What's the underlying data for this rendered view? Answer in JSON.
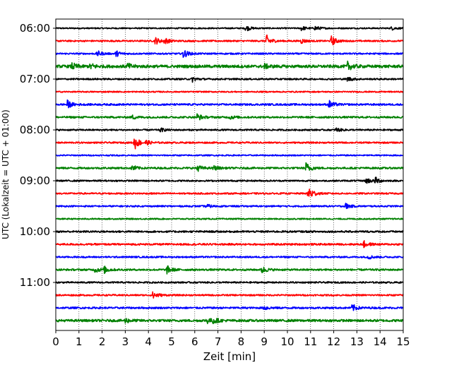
{
  "chart_data": {
    "type": "line",
    "title": "",
    "xlabel": "Zeit  [min]",
    "ylabel": "UTC (Lokalzeit = UTC + 01:00)",
    "xlim": [
      0,
      15
    ],
    "xticks": [
      0,
      1,
      2,
      3,
      4,
      5,
      6,
      7,
      8,
      9,
      10,
      11,
      12,
      13,
      14,
      15
    ],
    "xtick_labels": [
      "0",
      "1",
      "2",
      "3",
      "4",
      "5",
      "6",
      "7",
      "8",
      "9",
      "10",
      "11",
      "12",
      "13",
      "14",
      "15"
    ],
    "row_interval_min": 15,
    "y_tick_rows": [
      0,
      4,
      8,
      12,
      16,
      20
    ],
    "y_tick_labels": [
      "06:00",
      "07:00",
      "08:00",
      "09:00",
      "10:00",
      "11:00"
    ],
    "grid": "vertical dotted",
    "color_cycle": [
      "#000000",
      "#ff0000",
      "#0000ff",
      "#008000"
    ],
    "rows": [
      {
        "start": "06:00",
        "color": "#000000",
        "base_noise": 0.1,
        "events": [
          {
            "t": 8.2,
            "amp": 0.45
          },
          {
            "t": 10.6,
            "amp": 0.35
          },
          {
            "t": 11.2,
            "amp": 0.35
          },
          {
            "t": 14.5,
            "amp": 0.25
          }
        ]
      },
      {
        "start": "06:15",
        "color": "#ff0000",
        "base_noise": 0.12,
        "events": [
          {
            "t": 4.3,
            "amp": 0.55
          },
          {
            "t": 4.7,
            "amp": 0.45
          },
          {
            "t": 9.1,
            "amp": 0.9
          },
          {
            "t": 10.6,
            "amp": 0.35
          },
          {
            "t": 11.9,
            "amp": 0.75
          }
        ]
      },
      {
        "start": "06:30",
        "color": "#0000ff",
        "base_noise": 0.12,
        "events": [
          {
            "t": 1.8,
            "amp": 0.4
          },
          {
            "t": 2.6,
            "amp": 0.45
          },
          {
            "t": 5.5,
            "amp": 0.7
          }
        ]
      },
      {
        "start": "06:45",
        "color": "#008000",
        "base_noise": 0.22,
        "events": [
          {
            "t": 0.7,
            "amp": 0.5
          },
          {
            "t": 1.5,
            "amp": 0.45
          },
          {
            "t": 3.1,
            "amp": 0.4
          },
          {
            "t": 9.0,
            "amp": 0.35
          },
          {
            "t": 12.6,
            "amp": 0.65
          }
        ]
      },
      {
        "start": "07:00",
        "color": "#000000",
        "base_noise": 0.12,
        "events": [
          {
            "t": 5.9,
            "amp": 0.4
          },
          {
            "t": 12.6,
            "amp": 0.35
          }
        ]
      },
      {
        "start": "07:15",
        "color": "#ff0000",
        "base_noise": 0.1,
        "events": []
      },
      {
        "start": "07:30",
        "color": "#0000ff",
        "base_noise": 0.14,
        "events": [
          {
            "t": 0.5,
            "amp": 0.6
          },
          {
            "t": 11.8,
            "amp": 0.6
          }
        ]
      },
      {
        "start": "07:45",
        "color": "#008000",
        "base_noise": 0.14,
        "events": [
          {
            "t": 3.3,
            "amp": 0.3
          },
          {
            "t": 6.1,
            "amp": 0.55
          },
          {
            "t": 7.5,
            "amp": 0.3
          }
        ]
      },
      {
        "start": "08:00",
        "color": "#000000",
        "base_noise": 0.12,
        "events": [
          {
            "t": 4.5,
            "amp": 0.3
          },
          {
            "t": 12.1,
            "amp": 0.3
          }
        ]
      },
      {
        "start": "08:15",
        "color": "#ff0000",
        "base_noise": 0.12,
        "events": [
          {
            "t": 3.4,
            "amp": 1.1
          },
          {
            "t": 3.9,
            "amp": 0.3
          }
        ]
      },
      {
        "start": "08:30",
        "color": "#0000ff",
        "base_noise": 0.1,
        "events": []
      },
      {
        "start": "08:45",
        "color": "#008000",
        "base_noise": 0.14,
        "events": [
          {
            "t": 3.3,
            "amp": 0.45
          },
          {
            "t": 6.1,
            "amp": 0.5
          },
          {
            "t": 6.8,
            "amp": 0.35
          },
          {
            "t": 10.8,
            "amp": 0.85
          }
        ]
      },
      {
        "start": "09:00",
        "color": "#000000",
        "base_noise": 0.12,
        "events": [
          {
            "t": 13.4,
            "amp": 0.45
          },
          {
            "t": 13.8,
            "amp": 0.5
          }
        ]
      },
      {
        "start": "09:15",
        "color": "#ff0000",
        "base_noise": 0.12,
        "events": [
          {
            "t": 10.9,
            "amp": 1.3
          }
        ]
      },
      {
        "start": "09:30",
        "color": "#0000ff",
        "base_noise": 0.12,
        "events": [
          {
            "t": 6.5,
            "amp": 0.3
          },
          {
            "t": 12.5,
            "amp": 0.45
          }
        ]
      },
      {
        "start": "09:45",
        "color": "#008000",
        "base_noise": 0.1,
        "events": []
      },
      {
        "start": "10:00",
        "color": "#000000",
        "base_noise": 0.14,
        "events": []
      },
      {
        "start": "10:15",
        "color": "#ff0000",
        "base_noise": 0.14,
        "events": [
          {
            "t": 13.3,
            "amp": 0.5
          }
        ]
      },
      {
        "start": "10:30",
        "color": "#0000ff",
        "base_noise": 0.12,
        "events": [
          {
            "t": 13.5,
            "amp": 0.3
          }
        ]
      },
      {
        "start": "10:45",
        "color": "#008000",
        "base_noise": 0.14,
        "events": [
          {
            "t": 1.7,
            "amp": 0.45
          },
          {
            "t": 2.1,
            "amp": 0.45
          },
          {
            "t": 4.8,
            "amp": 0.6
          },
          {
            "t": 8.9,
            "amp": 0.55
          }
        ]
      },
      {
        "start": "11:00",
        "color": "#000000",
        "base_noise": 0.12,
        "events": []
      },
      {
        "start": "11:15",
        "color": "#ff0000",
        "base_noise": 0.12,
        "events": [
          {
            "t": 4.2,
            "amp": 0.65
          }
        ]
      },
      {
        "start": "11:30",
        "color": "#0000ff",
        "base_noise": 0.14,
        "events": [
          {
            "t": 9.0,
            "amp": 0.35
          },
          {
            "t": 12.8,
            "amp": 0.55
          }
        ]
      },
      {
        "start": "11:45",
        "color": "#008000",
        "base_noise": 0.18,
        "events": [
          {
            "t": 3.0,
            "amp": 0.35
          },
          {
            "t": 6.5,
            "amp": 0.45
          },
          {
            "t": 6.8,
            "amp": 0.4
          }
        ]
      }
    ]
  }
}
